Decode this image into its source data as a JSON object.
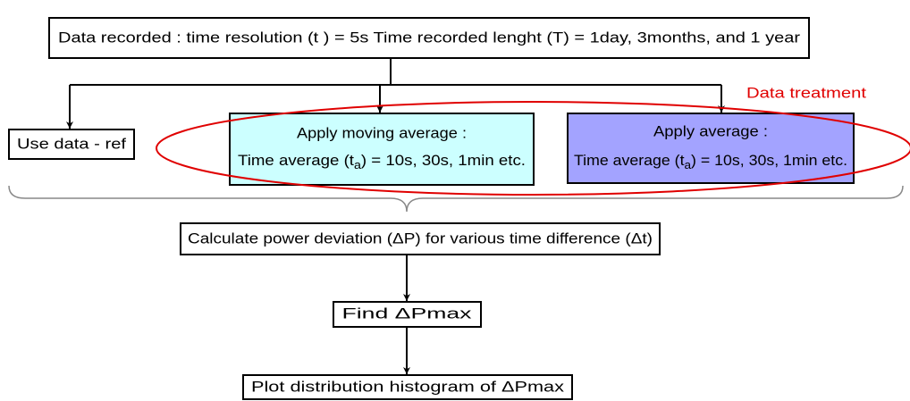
{
  "nodes": [
    {
      "label": "Data recorded : time resolution (t ) = 5s  Time recorded lenght (T) = 1day, 3months, and 1 year"
    },
    {
      "label": "Use data - ref"
    },
    {
      "title": "Apply moving average :",
      "detail": {
        "prefix": "Time average (t",
        "subscript": "a",
        "suffix": ") = 10s, 30s, 1min etc."
      }
    },
    {
      "title": "Apply average :",
      "detail": {
        "prefix": "Time average (t",
        "subscript": "a",
        "suffix": ") = 10s, 30s, 1min etc."
      }
    },
    {
      "label": "Calculate power deviation (ΔP) for various time difference (Δt)"
    },
    {
      "label": "Find ΔPmax"
    },
    {
      "label": "Plot distribution histogram of ΔPmax"
    }
  ],
  "annotation": "Data treatment"
}
